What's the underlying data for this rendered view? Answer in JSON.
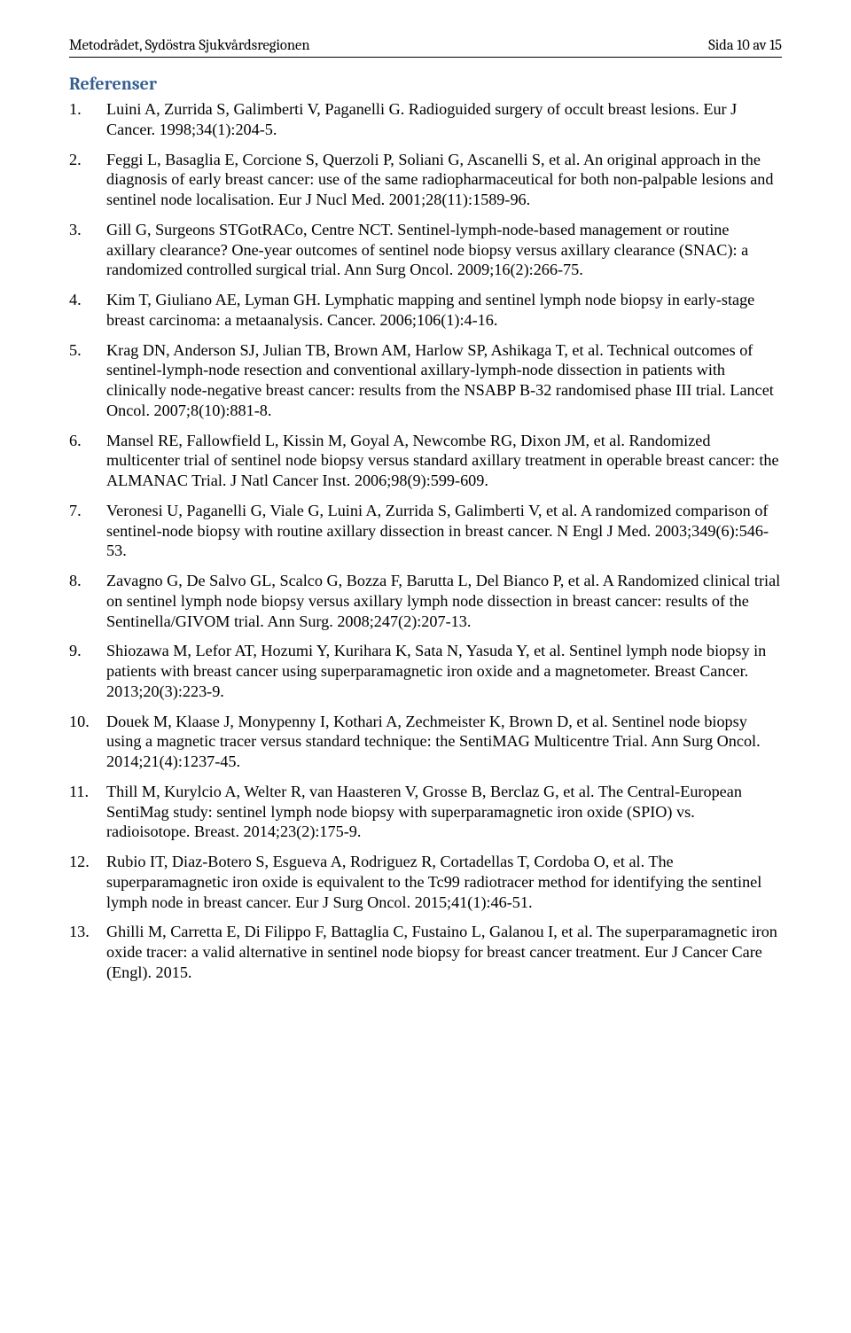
{
  "header": {
    "left": "Metodrådet, Sydöstra Sjukvårdsregionen",
    "right": "Sida 10 av 15"
  },
  "section_title": "Referenser",
  "colors": {
    "section_title": "#365f91",
    "text": "#000000",
    "background": "#ffffff"
  },
  "references": [
    {
      "num": "1.",
      "text": "Luini A, Zurrida S, Galimberti V, Paganelli G. Radioguided surgery of occult breast lesions. Eur J Cancer. 1998;34(1):204-5."
    },
    {
      "num": "2.",
      "text": "Feggi L, Basaglia E, Corcione S, Querzoli P, Soliani G, Ascanelli S, et al. An original approach in the diagnosis of early breast cancer: use of the same radiopharmaceutical for both non-palpable lesions and sentinel node localisation. Eur J Nucl Med. 2001;28(11):1589-96."
    },
    {
      "num": "3.",
      "text": "Gill G, Surgeons STGotRACo, Centre NCT. Sentinel-lymph-node-based management or routine axillary clearance? One-year outcomes of sentinel node biopsy versus axillary clearance (SNAC): a randomized controlled surgical trial. Ann Surg Oncol. 2009;16(2):266-75."
    },
    {
      "num": "4.",
      "text": "Kim T, Giuliano AE, Lyman GH. Lymphatic mapping and sentinel lymph node biopsy in early-stage breast carcinoma: a metaanalysis. Cancer. 2006;106(1):4-16."
    },
    {
      "num": "5.",
      "text": "Krag DN, Anderson SJ, Julian TB, Brown AM, Harlow SP, Ashikaga T, et al. Technical outcomes of sentinel-lymph-node resection and conventional axillary-lymph-node dissection in patients with clinically node-negative breast cancer: results from the NSABP B-32 randomised phase III trial. Lancet Oncol. 2007;8(10):881-8."
    },
    {
      "num": "6.",
      "text": "Mansel RE, Fallowfield L, Kissin M, Goyal A, Newcombe RG, Dixon JM, et al. Randomized multicenter trial of sentinel node biopsy versus standard axillary treatment in operable breast cancer: the ALMANAC Trial. J Natl Cancer Inst. 2006;98(9):599-609."
    },
    {
      "num": "7.",
      "text": "Veronesi U, Paganelli G, Viale G, Luini A, Zurrida S, Galimberti V, et al. A randomized comparison of sentinel-node biopsy with routine axillary dissection in breast cancer. N Engl J Med. 2003;349(6):546-53."
    },
    {
      "num": "8.",
      "text": "Zavagno G, De Salvo GL, Scalco G, Bozza F, Barutta L, Del Bianco P, et al. A Randomized clinical trial on sentinel lymph node biopsy versus axillary lymph node dissection in breast cancer: results of the Sentinella/GIVOM trial. Ann Surg. 2008;247(2):207-13."
    },
    {
      "num": "9.",
      "text": "Shiozawa M, Lefor AT, Hozumi Y, Kurihara K, Sata N, Yasuda Y, et al. Sentinel lymph node biopsy in patients with breast cancer using superparamagnetic iron oxide and a magnetometer. Breast Cancer. 2013;20(3):223-9."
    },
    {
      "num": "10.",
      "text": "Douek M, Klaase J, Monypenny I, Kothari A, Zechmeister K, Brown D, et al. Sentinel node biopsy using a magnetic tracer versus standard technique: the SentiMAG Multicentre Trial. Ann Surg Oncol. 2014;21(4):1237-45."
    },
    {
      "num": "11.",
      "text": "Thill M, Kurylcio A, Welter R, van Haasteren V, Grosse B, Berclaz G, et al. The Central-European SentiMag study: sentinel lymph node biopsy with superparamagnetic iron oxide (SPIO) vs. radioisotope. Breast. 2014;23(2):175-9."
    },
    {
      "num": "12.",
      "text": "Rubio IT, Diaz-Botero S, Esgueva A, Rodriguez R, Cortadellas T, Cordoba O, et al. The superparamagnetic iron oxide is equivalent to the Tc99 radiotracer method for identifying the sentinel lymph node in breast cancer. Eur J Surg Oncol. 2015;41(1):46-51."
    },
    {
      "num": "13.",
      "text": "Ghilli M, Carretta E, Di Filippo F, Battaglia C, Fustaino L, Galanou I, et al. The superparamagnetic iron oxide tracer: a valid alternative in sentinel node biopsy for breast cancer treatment. Eur J Cancer Care (Engl). 2015."
    }
  ]
}
